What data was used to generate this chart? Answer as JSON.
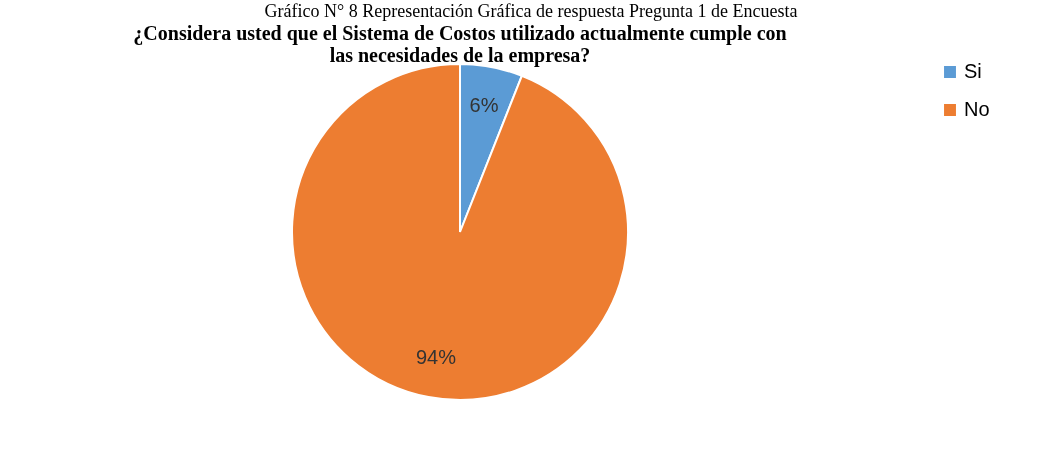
{
  "chart_data": {
    "type": "pie",
    "title": "¿Considera usted que el Sistema de Costos utilizado actualmente cumple con las necesidades de la empresa?",
    "annotations": [
      "Gráfico N° 8 Representación Gráfica de respuesta Pregunta 1 de Encuesta"
    ],
    "categories": [
      "Si",
      "No"
    ],
    "values": [
      6,
      94
    ],
    "colors": [
      "#5b9bd5",
      "#ed7d31"
    ],
    "value_labels": [
      "6%",
      "94%"
    ],
    "legend": "right"
  }
}
